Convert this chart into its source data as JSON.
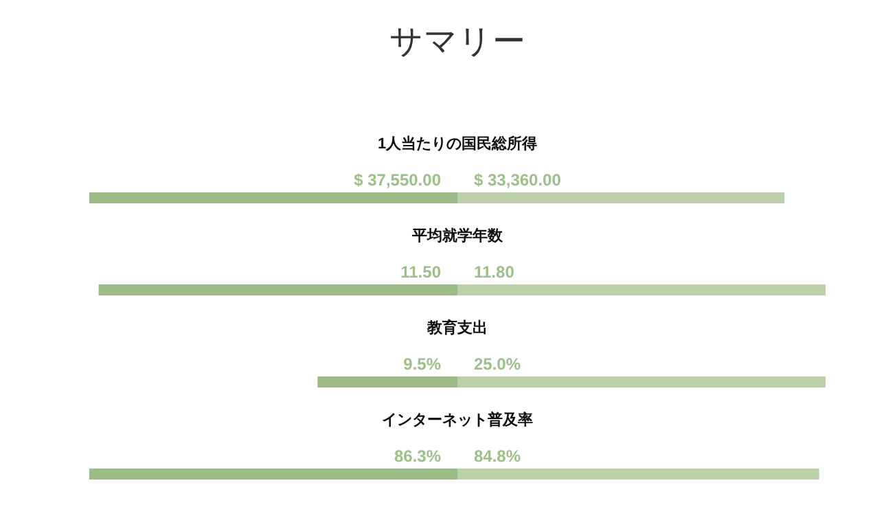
{
  "chart_data": [
    {
      "type": "other",
      "title": "サマリー"
    },
    {
      "type": "bar",
      "orientation": "horizontal",
      "stacked": true,
      "title": "1人当たりの国民総所得",
      "categories": [
        null
      ],
      "series": [
        {
          "color": "#9cba85",
          "values": [
            37550
          ],
          "value_labels": [
            "$ 37,550.00"
          ]
        },
        {
          "color": "#bcd1a9",
          "values": [
            33360
          ],
          "value_labels": [
            "$ 33,360.00"
          ]
        }
      ]
    },
    {
      "type": "bar",
      "orientation": "horizontal",
      "stacked": true,
      "title": "平均就学年数",
      "categories": [
        null
      ],
      "series": [
        {
          "color": "#9cba85",
          "values": [
            11.5
          ],
          "value_labels": [
            "11.50"
          ]
        },
        {
          "color": "#bcd1a9",
          "values": [
            11.8
          ],
          "value_labels": [
            "11.80"
          ]
        }
      ]
    },
    {
      "type": "bar",
      "orientation": "horizontal",
      "stacked": true,
      "title": "教育支出",
      "categories": [
        null
      ],
      "series": [
        {
          "color": "#9cba85",
          "values": [
            9.5
          ],
          "value_labels": [
            "9.5%"
          ]
        },
        {
          "color": "#bcd1a9",
          "values": [
            25.0
          ],
          "value_labels": [
            "25.0%"
          ]
        }
      ]
    },
    {
      "type": "bar",
      "orientation": "horizontal",
      "stacked": true,
      "title": "インターネット普及率",
      "categories": [
        null
      ],
      "series": [
        {
          "color": "#9cba85",
          "values": [
            86.3
          ],
          "value_labels": [
            "86.3%"
          ]
        },
        {
          "color": "#bcd1a9",
          "values": [
            84.8
          ],
          "value_labels": [
            "84.8%"
          ]
        }
      ]
    }
  ]
}
